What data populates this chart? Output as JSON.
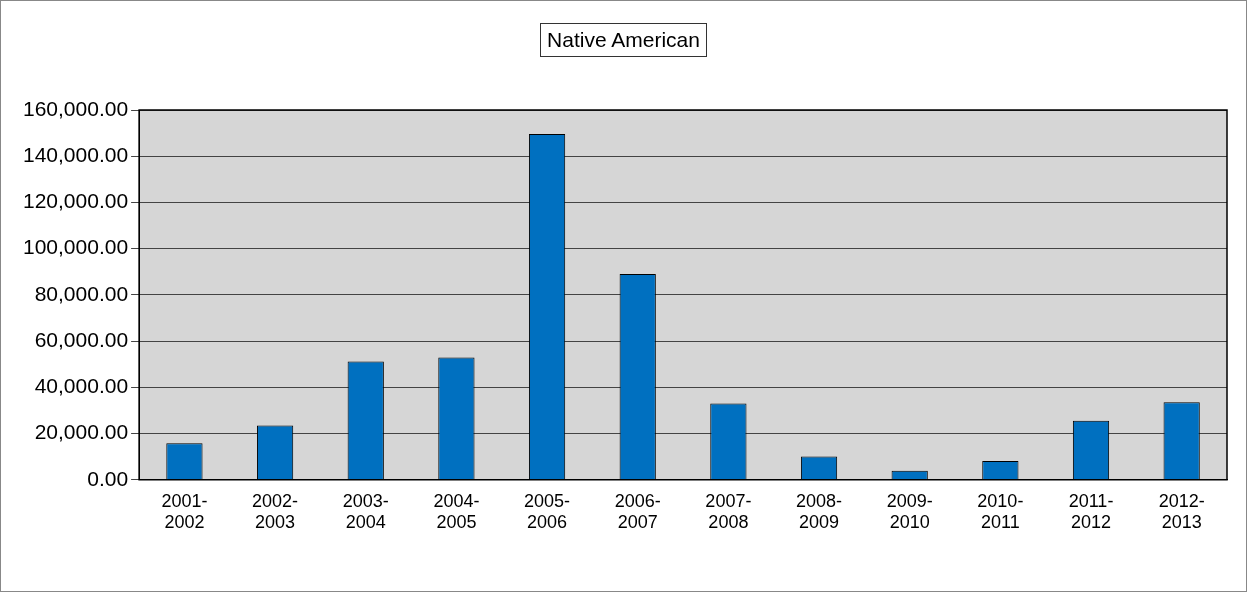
{
  "chart_data": {
    "type": "bar",
    "title": "Native American",
    "categories": [
      "2001-2002",
      "2002-2003",
      "2003-2004",
      "2004-2005",
      "2005-2006",
      "2006-2007",
      "2007-2008",
      "2008-2009",
      "2009-2010",
      "2010-2011",
      "2011-2012",
      "2012-2013"
    ],
    "values": [
      15800,
      23500,
      51200,
      52900,
      149600,
      89000,
      33000,
      10100,
      3900,
      8100,
      25600,
      33600
    ],
    "color": "#0070c0",
    "ylim": [
      0,
      160000
    ],
    "yticks": [
      {
        "value": 0,
        "label": "0.00"
      },
      {
        "value": 20000,
        "label": "20,000.00"
      },
      {
        "value": 40000,
        "label": "40,000.00"
      },
      {
        "value": 60000,
        "label": "60,000.00"
      },
      {
        "value": 80000,
        "label": "80,000.00"
      },
      {
        "value": 100000,
        "label": "100,000.00"
      },
      {
        "value": 120000,
        "label": "120,000.00"
      },
      {
        "value": 140000,
        "label": "140,000.00"
      },
      {
        "value": 160000,
        "label": "160,000.00"
      }
    ],
    "grid": "y",
    "legend": false
  }
}
